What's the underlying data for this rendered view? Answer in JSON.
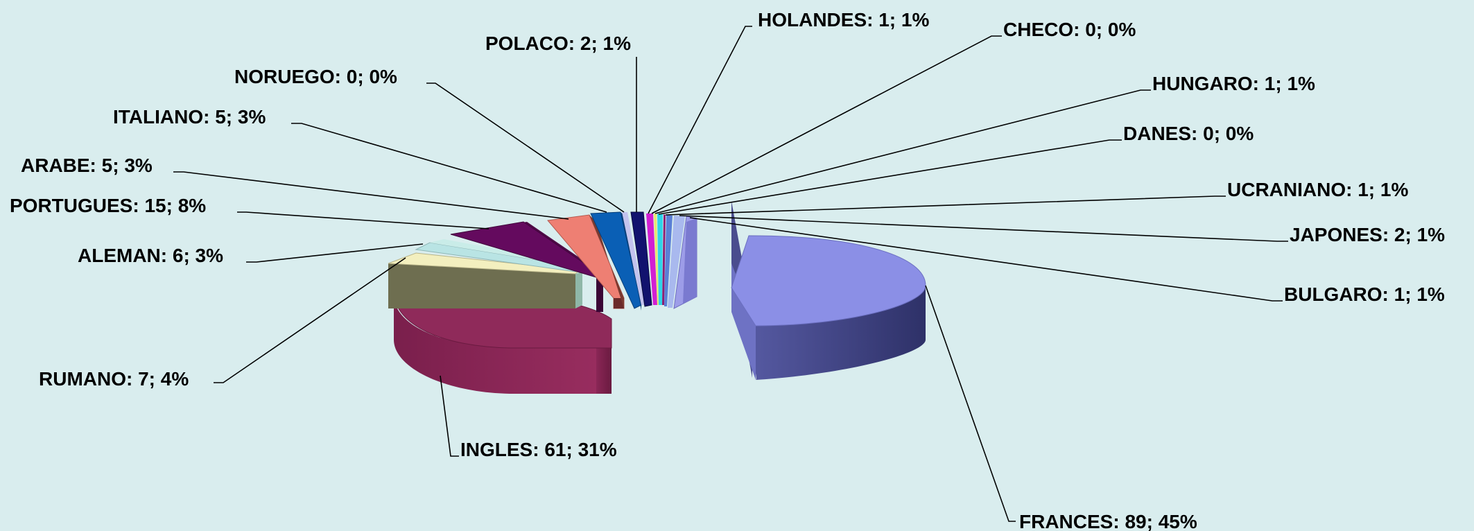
{
  "chart_data": {
    "type": "pie",
    "style": "3d-exploded",
    "background": "#d9edee",
    "title": "",
    "slices": [
      {
        "name": "FRANCES",
        "value": 89,
        "percent": "45%",
        "label": "FRANCES: 89; 45%",
        "color": "#8b8fe6"
      },
      {
        "name": "INGLES",
        "value": 61,
        "percent": "31%",
        "label": "INGLES: 61; 31%",
        "color": "#8f2a5a"
      },
      {
        "name": "RUMANO",
        "value": 7,
        "percent": "4%",
        "label": "RUMANO: 7; 4%",
        "color": "#f3efbf"
      },
      {
        "name": "ALEMAN",
        "value": 6,
        "percent": "3%",
        "label": "ALEMAN: 6; 3%",
        "color": "#b9e4e4"
      },
      {
        "name": "PORTUGUES",
        "value": 15,
        "percent": "8%",
        "label": "PORTUGUES: 15; 8%",
        "color": "#640a5e"
      },
      {
        "name": "ARABE",
        "value": 5,
        "percent": "3%",
        "label": "ARABE: 5; 3%",
        "color": "#ee7f73"
      },
      {
        "name": "ITALIANO",
        "value": 5,
        "percent": "3%",
        "label": "ITALIANO: 5; 3%",
        "color": "#0a5fb5"
      },
      {
        "name": "NORUEGO",
        "value": 0,
        "percent": "0%",
        "label": "NORUEGO: 0; 0%",
        "color": "#c3c3ee"
      },
      {
        "name": "POLACO",
        "value": 2,
        "percent": "1%",
        "label": "POLACO: 2; 1%",
        "color": "#12126e"
      },
      {
        "name": "HOLANDES",
        "value": 1,
        "percent": "1%",
        "label": "HOLANDES: 1; 1%",
        "color": "#d21fd2"
      },
      {
        "name": "CHECO",
        "value": 0,
        "percent": "0%",
        "label": "CHECO: 0; 0%",
        "color": "#e8e86e"
      },
      {
        "name": "HUNGARO",
        "value": 1,
        "percent": "1%",
        "label": "HUNGARO: 1; 1%",
        "color": "#2fd4e8"
      },
      {
        "name": "DANES",
        "value": 0,
        "percent": "0%",
        "label": "DANES: 0; 0%",
        "color": "#8c1f72"
      },
      {
        "name": "UCRANIANO",
        "value": 1,
        "percent": "1%",
        "label": "UCRANIANO: 1; 1%",
        "color": "#5a7fd6"
      },
      {
        "name": "JAPONES",
        "value": 2,
        "percent": "1%",
        "label": "JAPONES: 2; 1%",
        "color": "#a9b9ee"
      },
      {
        "name": "BULGARO",
        "value": 1,
        "percent": "1%",
        "label": "BULGARO: 1; 1%",
        "color": "#9d9de8"
      }
    ]
  }
}
